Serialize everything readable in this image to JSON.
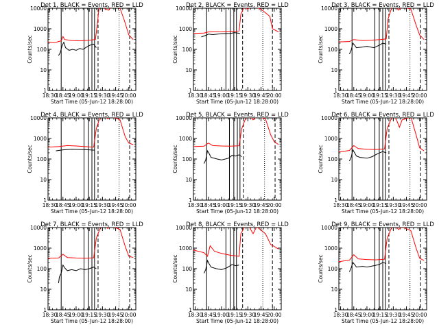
{
  "chart_data": {
    "type": "line",
    "yscale": "log",
    "ylim": [
      1,
      10000
    ],
    "ylabel": "Counts/sec",
    "xlabel": "Start Time (05-Jun-12 18:28:00)",
    "xlim": [
      "18:28",
      "20:08"
    ],
    "x_ticks": [
      "18:30",
      "18:45",
      "19:00",
      "19:15",
      "19:30",
      "19:45",
      "20:00"
    ],
    "y_ticks": [
      "1",
      "10",
      "100",
      "1000",
      "10000"
    ],
    "colors": {
      "events": "#000000",
      "lld": "#ff0000",
      "axes": "#000000"
    },
    "legend_text": {
      "black": "BLACK = Events,",
      "red": "RED = LLD"
    },
    "panels": [
      {
        "title": "Det 1",
        "solid_markers": [
          "18:43",
          "19:09",
          "19:14",
          "19:18",
          "19:21"
        ],
        "dashed_markers": [
          "19:25",
          "20:01"
        ],
        "dotted_markers": [
          "19:49"
        ],
        "events": [
          [
            "18:40",
            50
          ],
          [
            "18:42",
            70
          ],
          [
            "18:44",
            150
          ],
          [
            "18:46",
            220
          ],
          [
            "18:48",
            120
          ],
          [
            "18:52",
            90
          ],
          [
            "18:56",
            100
          ],
          [
            "19:00",
            90
          ],
          [
            "19:04",
            110
          ],
          [
            "19:08",
            100
          ],
          [
            "19:12",
            130
          ],
          [
            "19:16",
            160
          ],
          [
            "19:20",
            180
          ],
          [
            "19:23",
            120
          ]
        ],
        "lld": [
          [
            "18:28",
            230
          ],
          [
            "18:35",
            210
          ],
          [
            "18:40",
            240
          ],
          [
            "18:43",
            260
          ],
          [
            "18:45",
            420
          ],
          [
            "18:47",
            300
          ],
          [
            "18:55",
            270
          ],
          [
            "19:05",
            260
          ],
          [
            "19:15",
            280
          ],
          [
            "19:22",
            300
          ],
          [
            "19:24",
            1500
          ],
          [
            "19:26",
            9000
          ],
          [
            "19:30",
            14000
          ],
          [
            "19:34",
            9000
          ],
          [
            "19:37",
            8000
          ],
          [
            "19:40",
            12000
          ],
          [
            "19:50",
            10000
          ],
          [
            "19:55",
            2500
          ],
          [
            "20:00",
            500
          ],
          [
            "20:05",
            300
          ]
        ]
      },
      {
        "title": "Det 2",
        "solid_markers": [
          "18:43",
          "19:05",
          "19:10",
          "19:14",
          "19:17"
        ],
        "dashed_markers": [
          "19:24",
          "19:58"
        ],
        "dotted_markers": [
          "19:47"
        ],
        "events": [
          [
            "18:37",
            400
          ],
          [
            "18:42",
            480
          ],
          [
            "18:45",
            550
          ],
          [
            "18:50",
            520
          ],
          [
            "19:00",
            580
          ],
          [
            "19:10",
            600
          ],
          [
            "19:15",
            650
          ],
          [
            "19:21",
            600
          ]
        ],
        "lld": [
          [
            "18:28",
            600
          ],
          [
            "18:40",
            620
          ],
          [
            "18:45",
            700
          ],
          [
            "19:00",
            720
          ],
          [
            "19:10",
            750
          ],
          [
            "19:20",
            780
          ],
          [
            "19:22",
            5000
          ],
          [
            "19:26",
            12000
          ],
          [
            "19:30",
            9000
          ],
          [
            "19:34",
            13000
          ],
          [
            "19:40",
            11000
          ],
          [
            "19:45",
            9000
          ],
          [
            "19:55",
            4000
          ],
          [
            "19:58",
            1000
          ],
          [
            "20:05",
            700
          ]
        ]
      },
      {
        "title": "Det 3",
        "solid_markers": [
          "18:43",
          "19:09",
          "19:14",
          "19:18",
          "19:21"
        ],
        "dashed_markers": [
          "19:25",
          "20:01"
        ],
        "dotted_markers": [
          "19:49"
        ],
        "events": [
          [
            "18:40",
            60
          ],
          [
            "18:42",
            90
          ],
          [
            "18:44",
            200
          ],
          [
            "18:46",
            160
          ],
          [
            "18:48",
            120
          ],
          [
            "18:55",
            130
          ],
          [
            "19:00",
            140
          ],
          [
            "19:08",
            120
          ],
          [
            "19:14",
            160
          ],
          [
            "19:18",
            200
          ],
          [
            "19:22",
            180
          ]
        ],
        "lld": [
          [
            "18:28",
            230
          ],
          [
            "18:40",
            240
          ],
          [
            "18:45",
            300
          ],
          [
            "18:55",
            270
          ],
          [
            "19:05",
            280
          ],
          [
            "19:15",
            300
          ],
          [
            "19:22",
            320
          ],
          [
            "19:24",
            3000
          ],
          [
            "19:28",
            10000
          ],
          [
            "19:32",
            13000
          ],
          [
            "19:36",
            8000
          ],
          [
            "19:40",
            12000
          ],
          [
            "19:50",
            9000
          ],
          [
            "19:56",
            1500
          ],
          [
            "20:00",
            500
          ],
          [
            "20:05",
            300
          ]
        ]
      },
      {
        "title": "Det 4",
        "solid_markers": [
          "18:43",
          "19:09",
          "19:14",
          "19:18",
          "19:21"
        ],
        "dashed_markers": [
          "19:25",
          "20:01"
        ],
        "dotted_markers": [
          "19:49"
        ],
        "events": [
          [
            "18:37",
            250
          ],
          [
            "18:45",
            280
          ],
          [
            "18:55",
            300
          ],
          [
            "19:05",
            290
          ],
          [
            "19:15",
            280
          ],
          [
            "19:21",
            270
          ]
        ],
        "lld": [
          [
            "18:28",
            380
          ],
          [
            "18:40",
            400
          ],
          [
            "18:50",
            450
          ],
          [
            "19:00",
            430
          ],
          [
            "19:10",
            400
          ],
          [
            "19:20",
            380
          ],
          [
            "19:23",
            3000
          ],
          [
            "19:27",
            10000
          ],
          [
            "19:32",
            14000
          ],
          [
            "19:36",
            9000
          ],
          [
            "19:40",
            12000
          ],
          [
            "19:50",
            8000
          ],
          [
            "19:56",
            1200
          ],
          [
            "20:00",
            600
          ],
          [
            "20:05",
            500
          ]
        ]
      },
      {
        "title": "Det 5",
        "solid_markers": [
          "18:43",
          "19:09",
          "19:14",
          "19:18",
          "19:21"
        ],
        "dashed_markers": [
          "19:25",
          "20:01"
        ],
        "dotted_markers": [
          "19:49"
        ],
        "events": [
          [
            "18:40",
            60
          ],
          [
            "18:42",
            90
          ],
          [
            "18:44",
            250
          ],
          [
            "18:46",
            180
          ],
          [
            "18:48",
            120
          ],
          [
            "18:55",
            100
          ],
          [
            "19:00",
            90
          ],
          [
            "19:08",
            110
          ],
          [
            "19:12",
            150
          ],
          [
            "19:16",
            140
          ],
          [
            "19:20",
            160
          ],
          [
            "19:23",
            130
          ]
        ],
        "lld": [
          [
            "18:28",
            400
          ],
          [
            "18:40",
            420
          ],
          [
            "18:45",
            600
          ],
          [
            "18:50",
            450
          ],
          [
            "19:00",
            430
          ],
          [
            "19:10",
            420
          ],
          [
            "19:20",
            440
          ],
          [
            "19:23",
            3000
          ],
          [
            "19:28",
            11000
          ],
          [
            "19:32",
            13000
          ],
          [
            "19:36",
            8000
          ],
          [
            "19:40",
            12000
          ],
          [
            "19:50",
            9000
          ],
          [
            "19:56",
            1500
          ],
          [
            "20:00",
            700
          ],
          [
            "20:05",
            500
          ]
        ]
      },
      {
        "title": "Det 6",
        "solid_markers": [
          "18:43",
          "19:09",
          "19:14",
          "19:18",
          "19:21"
        ],
        "dashed_markers": [
          "19:25",
          "20:01"
        ],
        "dotted_markers": [
          "19:49"
        ],
        "events": [
          [
            "18:40",
            80
          ],
          [
            "18:42",
            120
          ],
          [
            "18:44",
            280
          ],
          [
            "18:46",
            200
          ],
          [
            "18:48",
            140
          ],
          [
            "18:52",
            120
          ],
          [
            "19:00",
            110
          ],
          [
            "19:06",
            130
          ],
          [
            "19:12",
            180
          ],
          [
            "19:18",
            230
          ],
          [
            "19:22",
            200
          ]
        ],
        "lld": [
          [
            "18:28",
            220
          ],
          [
            "18:40",
            260
          ],
          [
            "18:45",
            450
          ],
          [
            "18:50",
            320
          ],
          [
            "19:00",
            300
          ],
          [
            "19:10",
            290
          ],
          [
            "19:20",
            310
          ],
          [
            "19:23",
            3000
          ],
          [
            "19:28",
            10000
          ],
          [
            "19:32",
            12000
          ],
          [
            "19:37",
            3500
          ],
          [
            "19:40",
            8000
          ],
          [
            "19:50",
            11000
          ],
          [
            "19:56",
            1500
          ],
          [
            "20:00",
            350
          ],
          [
            "20:05",
            250
          ]
        ]
      },
      {
        "title": "Det 7",
        "solid_markers": [
          "18:43",
          "19:09",
          "19:14",
          "19:18",
          "19:21"
        ],
        "dashed_markers": [
          "19:25",
          "20:01"
        ],
        "dotted_markers": [
          "19:49"
        ],
        "events": [
          [
            "18:40",
            20
          ],
          [
            "18:41",
            40
          ],
          [
            "18:43",
            60
          ],
          [
            "18:45",
            150
          ],
          [
            "18:47",
            110
          ],
          [
            "18:50",
            80
          ],
          [
            "18:55",
            90
          ],
          [
            "19:00",
            80
          ],
          [
            "19:05",
            100
          ],
          [
            "19:10",
            90
          ],
          [
            "19:15",
            100
          ],
          [
            "19:20",
            120
          ],
          [
            "19:23",
            100
          ]
        ],
        "lld": [
          [
            "18:28",
            320
          ],
          [
            "18:40",
            330
          ],
          [
            "18:45",
            500
          ],
          [
            "18:50",
            350
          ],
          [
            "19:00",
            330
          ],
          [
            "19:10",
            320
          ],
          [
            "19:20",
            340
          ],
          [
            "19:23",
            3000
          ],
          [
            "19:28",
            11000
          ],
          [
            "19:32",
            14000
          ],
          [
            "19:36",
            9000
          ],
          [
            "19:40",
            12000
          ],
          [
            "19:50",
            8000
          ],
          [
            "19:56",
            1200
          ],
          [
            "20:00",
            400
          ],
          [
            "20:05",
            350
          ]
        ]
      },
      {
        "title": "Det 8",
        "solid_markers": [
          "18:43",
          "19:05",
          "19:10",
          "19:14",
          "19:17"
        ],
        "dashed_markers": [
          "19:24",
          "19:58"
        ],
        "dotted_markers": [
          "19:47"
        ],
        "events": [
          [
            "18:40",
            60
          ],
          [
            "18:42",
            90
          ],
          [
            "18:44",
            250
          ],
          [
            "18:46",
            170
          ],
          [
            "18:48",
            120
          ],
          [
            "18:54",
            100
          ],
          [
            "19:00",
            90
          ],
          [
            "19:06",
            110
          ],
          [
            "19:12",
            160
          ],
          [
            "19:16",
            140
          ],
          [
            "19:20",
            150
          ]
        ],
        "lld": [
          [
            "18:28",
            800
          ],
          [
            "18:40",
            600
          ],
          [
            "18:44",
            400
          ],
          [
            "18:47",
            1300
          ],
          [
            "18:52",
            700
          ],
          [
            "19:00",
            550
          ],
          [
            "19:10",
            450
          ],
          [
            "19:20",
            400
          ],
          [
            "19:22",
            5000
          ],
          [
            "19:27",
            12000
          ],
          [
            "19:32",
            10000
          ],
          [
            "19:36",
            5000
          ],
          [
            "19:40",
            11000
          ],
          [
            "19:50",
            5000
          ],
          [
            "19:56",
            1500
          ],
          [
            "20:00",
            1200
          ],
          [
            "20:05",
            900
          ]
        ]
      },
      {
        "title": "Det 9",
        "solid_markers": [
          "18:43",
          "19:09",
          "19:14",
          "19:18",
          "19:21"
        ],
        "dashed_markers": [
          "19:25",
          "20:01"
        ],
        "dotted_markers": [
          "19:49"
        ],
        "events": [
          [
            "18:40",
            70
          ],
          [
            "18:42",
            110
          ],
          [
            "18:44",
            200
          ],
          [
            "18:46",
            160
          ],
          [
            "18:48",
            120
          ],
          [
            "18:55",
            130
          ],
          [
            "19:00",
            120
          ],
          [
            "19:08",
            140
          ],
          [
            "19:14",
            160
          ],
          [
            "19:18",
            200
          ],
          [
            "19:22",
            180
          ]
        ],
        "lld": [
          [
            "18:28",
            220
          ],
          [
            "18:40",
            260
          ],
          [
            "18:45",
            480
          ],
          [
            "18:50",
            300
          ],
          [
            "19:00",
            280
          ],
          [
            "19:10",
            270
          ],
          [
            "19:20",
            290
          ],
          [
            "19:23",
            3000
          ],
          [
            "19:28",
            10000
          ],
          [
            "19:32",
            13000
          ],
          [
            "19:36",
            8000
          ],
          [
            "19:40",
            11000
          ],
          [
            "19:50",
            7000
          ],
          [
            "19:56",
            1000
          ],
          [
            "20:00",
            320
          ],
          [
            "20:05",
            250
          ]
        ]
      }
    ]
  }
}
